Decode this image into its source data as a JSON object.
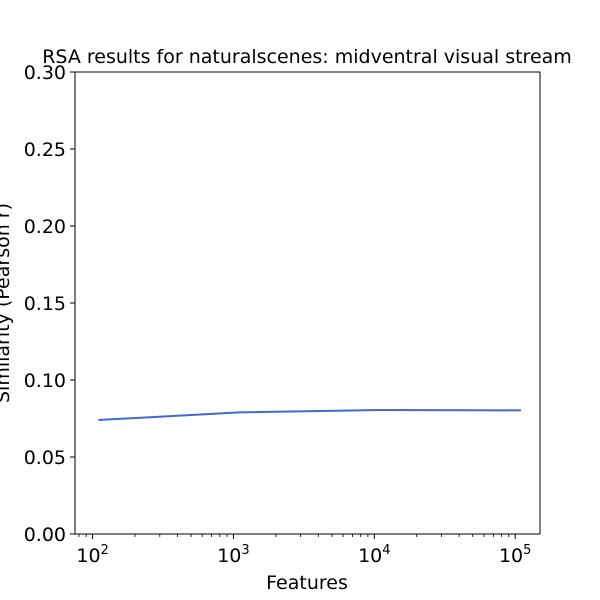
{
  "chart_data": {
    "type": "line",
    "title": "RSA results for naturalscenes: midventral visual stream",
    "xlabel": "Features",
    "ylabel": "Similarity (Pearson r)",
    "x_scale": "log",
    "xlim": [
      75,
      150000
    ],
    "ylim": [
      0.0,
      0.3
    ],
    "x_ticks": [
      {
        "value": 100,
        "base": "10",
        "exp": "2"
      },
      {
        "value": 1000,
        "base": "10",
        "exp": "3"
      },
      {
        "value": 10000,
        "base": "10",
        "exp": "4"
      },
      {
        "value": 100000,
        "base": "10",
        "exp": "5"
      }
    ],
    "y_ticks": [
      {
        "value": 0.0,
        "label": "0.00"
      },
      {
        "value": 0.05,
        "label": "0.05"
      },
      {
        "value": 0.1,
        "label": "0.10"
      },
      {
        "value": 0.15,
        "label": "0.15"
      },
      {
        "value": 0.2,
        "label": "0.20"
      },
      {
        "value": 0.25,
        "label": "0.25"
      },
      {
        "value": 0.3,
        "label": "0.30"
      }
    ],
    "grid": false,
    "series": [
      {
        "color": "#4169d6",
        "x": [
          110,
          1100,
          11000,
          110000
        ],
        "y": [
          0.074,
          0.079,
          0.0805,
          0.0803
        ]
      }
    ]
  }
}
